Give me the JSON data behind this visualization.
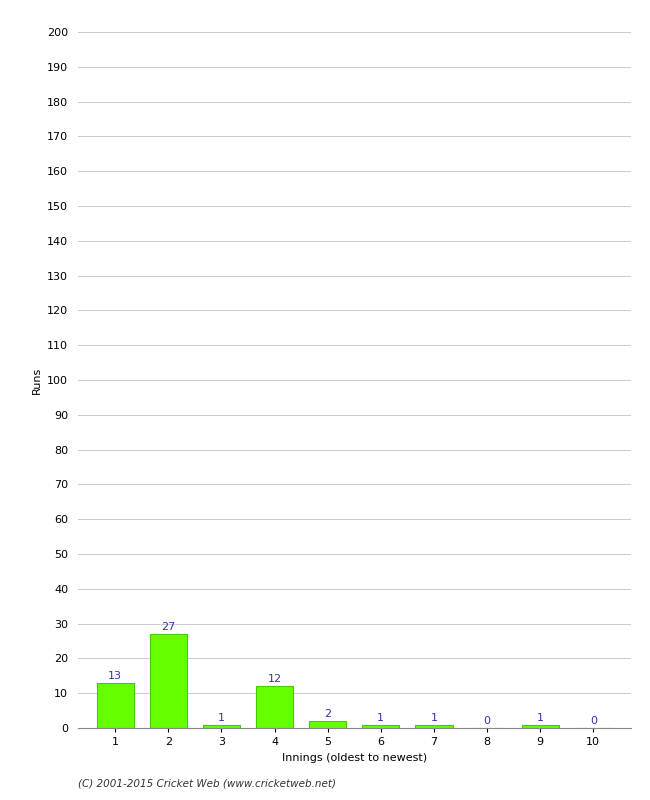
{
  "xlabel": "Innings (oldest to newest)",
  "ylabel": "Runs",
  "categories": [
    1,
    2,
    3,
    4,
    5,
    6,
    7,
    8,
    9,
    10
  ],
  "values": [
    13,
    27,
    1,
    12,
    2,
    1,
    1,
    0,
    1,
    0
  ],
  "bar_color": "#66ff00",
  "bar_edge_color": "#44cc00",
  "label_color": "#3333aa",
  "ylim": [
    0,
    200
  ],
  "yticks": [
    0,
    10,
    20,
    30,
    40,
    50,
    60,
    70,
    80,
    90,
    100,
    110,
    120,
    130,
    140,
    150,
    160,
    170,
    180,
    190,
    200
  ],
  "background_color": "#ffffff",
  "grid_color": "#cccccc",
  "footer": "(C) 2001-2015 Cricket Web (www.cricketweb.net)",
  "label_fontsize": 8,
  "axis_fontsize": 8,
  "ylabel_fontsize": 8
}
